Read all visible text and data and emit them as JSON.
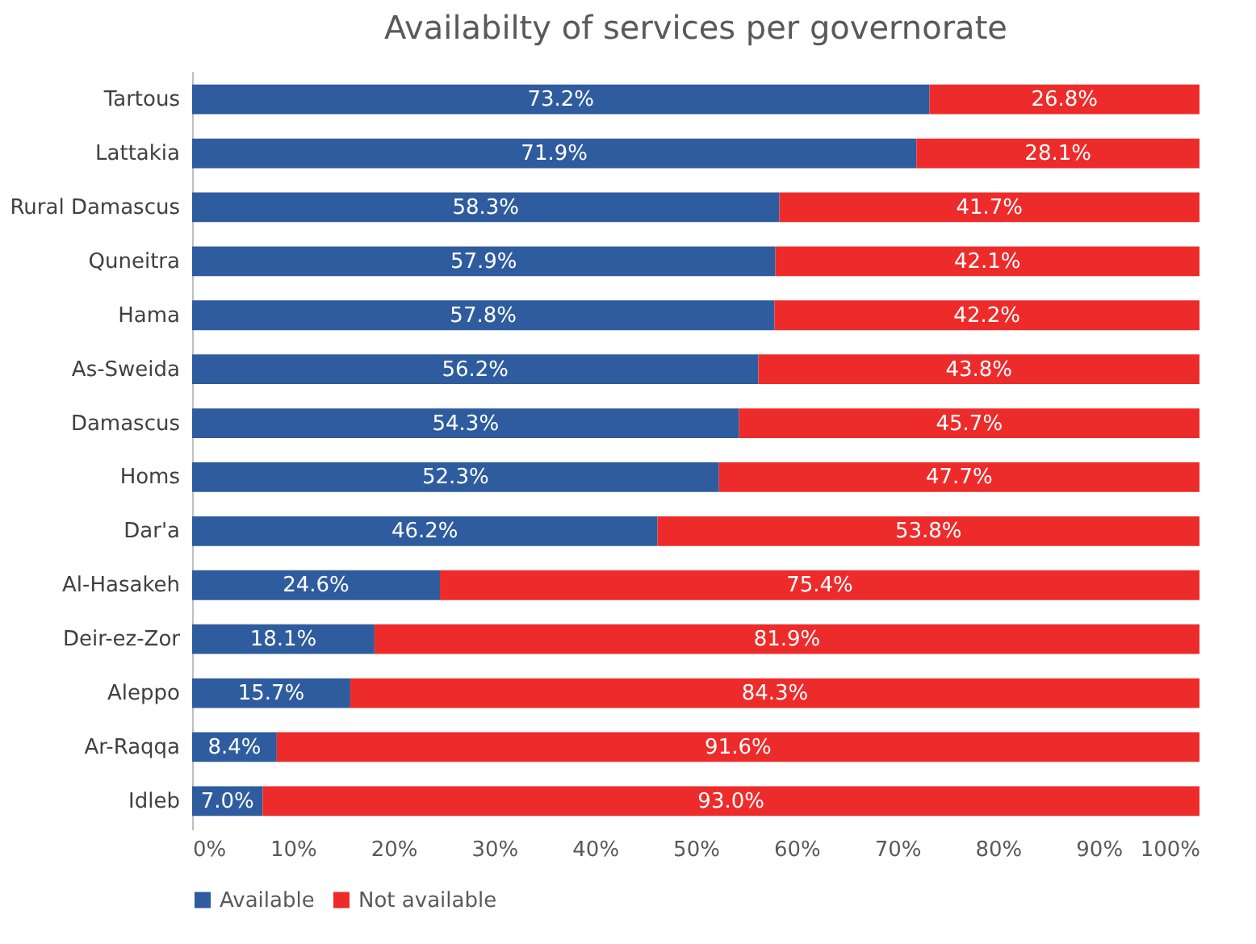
{
  "chart_data": {
    "type": "bar",
    "orientation": "horizontal",
    "stacked": true,
    "title": "Availabilty of services per governorate",
    "categories": [
      "Tartous",
      "Lattakia",
      "Rural Damascus",
      "Quneitra",
      "Hama",
      "As-Sweida",
      "Damascus",
      "Homs",
      "Dar'a",
      "Al-Hasakeh",
      "Deir-ez-Zor",
      "Aleppo",
      "Ar-Raqqa",
      "Idleb"
    ],
    "series": [
      {
        "name": "Available",
        "color": "#2e5c9e",
        "values": [
          73.2,
          71.9,
          58.3,
          57.9,
          57.8,
          56.2,
          54.3,
          52.3,
          46.2,
          24.6,
          18.1,
          15.7,
          8.4,
          7.0
        ],
        "value_labels": [
          "73.2%",
          "71.9%",
          "58.3%",
          "57.9%",
          "57.8%",
          "56.2%",
          "54.3%",
          "52.3%",
          "46.2%",
          "24.6%",
          "18.1%",
          "15.7%",
          "8.4%",
          "7.0%"
        ]
      },
      {
        "name": "Not available",
        "color": "#ee2b2b",
        "values": [
          26.8,
          28.1,
          41.7,
          42.1,
          42.2,
          43.8,
          45.7,
          47.7,
          53.8,
          75.4,
          81.9,
          84.3,
          91.6,
          93.0
        ],
        "value_labels": [
          "26.8%",
          "28.1%",
          "41.7%",
          "42.1%",
          "42.2%",
          "43.8%",
          "45.7%",
          "47.7%",
          "53.8%",
          "75.4%",
          "81.9%",
          "84.3%",
          "91.6%",
          "93.0%"
        ]
      }
    ],
    "xlim": [
      0,
      100
    ],
    "xticks": [
      {
        "value": 0,
        "label": "0%"
      },
      {
        "value": 10,
        "label": "10%"
      },
      {
        "value": 20,
        "label": "20%"
      },
      {
        "value": 30,
        "label": "30%"
      },
      {
        "value": 40,
        "label": "40%"
      },
      {
        "value": 50,
        "label": "50%"
      },
      {
        "value": 60,
        "label": "60%"
      },
      {
        "value": 70,
        "label": "70%"
      },
      {
        "value": 80,
        "label": "80%"
      },
      {
        "value": 90,
        "label": "90%"
      },
      {
        "value": 100,
        "label": "100%"
      }
    ],
    "legend": "bottom"
  }
}
